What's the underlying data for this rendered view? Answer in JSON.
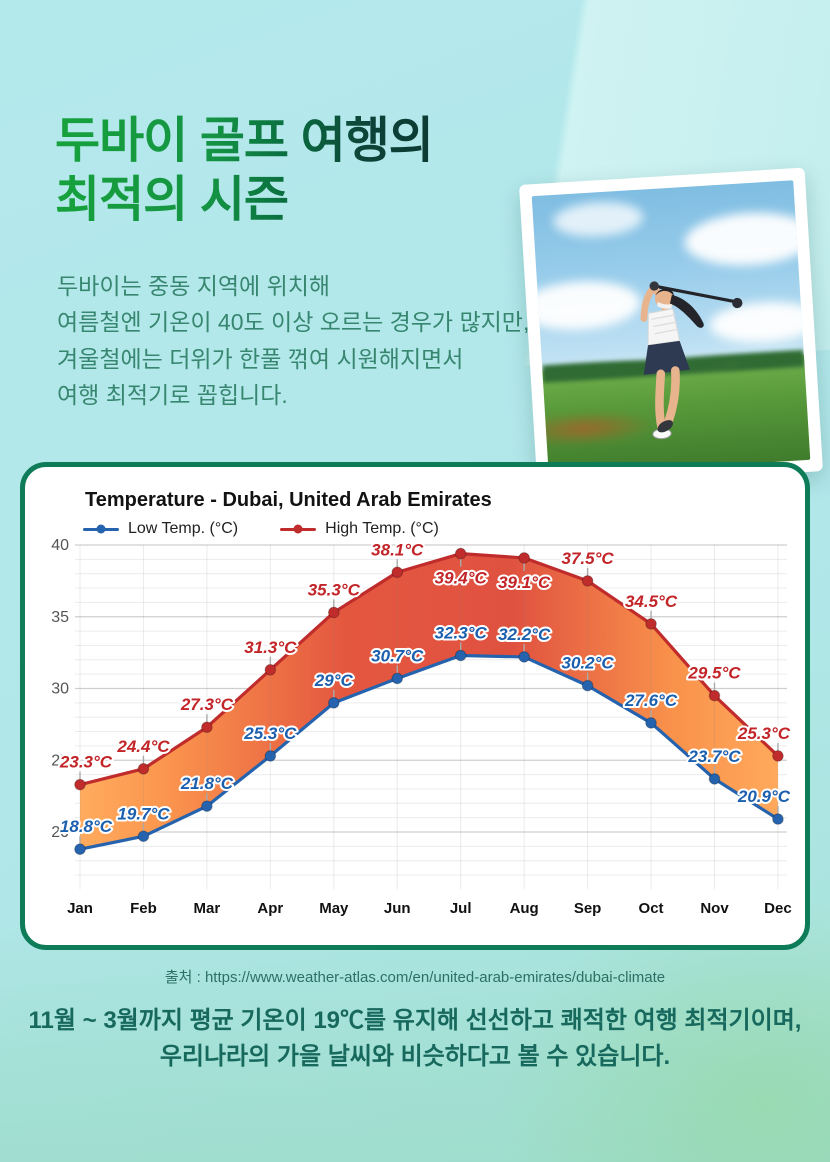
{
  "title": {
    "line1": "두바이 골프 여행의",
    "line2": "최적의 시즌"
  },
  "intro": {
    "lines": [
      "두바이는 중동 지역에 위치해",
      "여름철엔 기온이 40도 이상 오르는 경우가 많지만,",
      "겨울철에는 더위가 한풀 꺾여 시원해지면서",
      "여행 최적기로 꼽힙니다."
    ]
  },
  "chart_data": {
    "type": "line",
    "title": "Temperature - Dubai, United Arab Emirates",
    "categories": [
      "Jan",
      "Feb",
      "Mar",
      "Apr",
      "May",
      "Jun",
      "Jul",
      "Aug",
      "Sep",
      "Oct",
      "Nov",
      "Dec"
    ],
    "series": [
      {
        "name": "Low Temp. (°C)",
        "color": "#2563ae",
        "label_color": "#1b5fae",
        "values": [
          18.8,
          19.7,
          21.8,
          25.3,
          29,
          30.7,
          32.3,
          32.2,
          30.2,
          27.6,
          23.7,
          20.9
        ]
      },
      {
        "name": "High Temp. (°C)",
        "color": "#c02c2c",
        "label_color": "#c22428",
        "values": [
          23.3,
          24.4,
          27.3,
          31.3,
          35.3,
          38.1,
          39.4,
          39.1,
          37.5,
          34.5,
          29.5,
          25.3
        ]
      }
    ],
    "unit_suffix": "°C",
    "ylim": [
      16,
      41
    ],
    "yticks": [
      20,
      25,
      30,
      35,
      40
    ],
    "grid": true,
    "legend_position": "top",
    "area_between_series": true,
    "area_gradient": [
      "#FFAB5E",
      "#FB964E",
      "#E4573F",
      "#E05240",
      "#F9924B",
      "#FFA95C"
    ],
    "colors": {
      "grid_major": "#cfcfcf",
      "grid_minor": "#ececec",
      "tick_label": "#555555",
      "month_label": "#111111"
    }
  },
  "source": {
    "text": "출처 : https://www.weather-atlas.com/en/united-arab-emirates/dubai-climate"
  },
  "footer": {
    "line1": "11월 ~ 3월까지 평균 기온이 19℃를 유지해 선선하고 쾌적한 여행 최적기이며,",
    "line2": "우리나라의 가을 날씨와 비슷하다고 볼 수 있습니다."
  }
}
